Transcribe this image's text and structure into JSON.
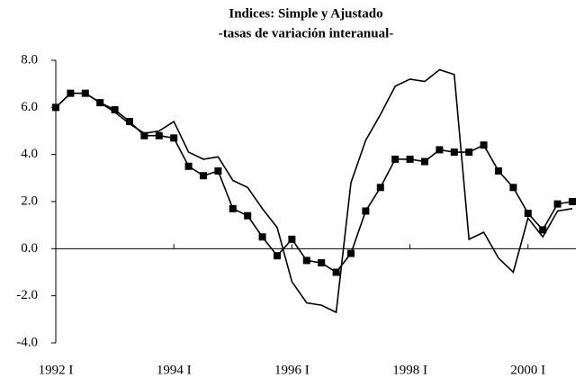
{
  "chart_data": {
    "type": "line",
    "title": "Indices:  Simple y Ajustado",
    "subtitle": "-tasas de variación interanual-",
    "categories": [
      "1992 I",
      null,
      null,
      null,
      null,
      null,
      null,
      null,
      "1994 I",
      null,
      null,
      null,
      null,
      null,
      null,
      null,
      "1996 I",
      null,
      null,
      null,
      null,
      null,
      null,
      null,
      "1998 I",
      null,
      null,
      null,
      null,
      null,
      null,
      null,
      "2000 I",
      null,
      null,
      null
    ],
    "series": [
      {
        "color": "#000000",
        "marker": "square",
        "values": [
          6.0,
          6.6,
          6.6,
          6.2,
          5.9,
          5.4,
          4.8,
          4.8,
          4.7,
          3.5,
          3.1,
          3.3,
          1.7,
          1.4,
          0.5,
          -0.3,
          0.4,
          -0.5,
          -0.6,
          -1.0,
          -0.2,
          1.6,
          2.6,
          3.8,
          3.8,
          3.7,
          4.2,
          4.1,
          4.1,
          4.4,
          3.3,
          2.6,
          1.5,
          0.8,
          1.9,
          2.0
        ]
      },
      {
        "color": "#000000",
        "marker": "none",
        "values": [
          6.0,
          6.6,
          6.6,
          6.2,
          5.8,
          5.3,
          4.9,
          5.0,
          5.4,
          4.1,
          3.8,
          3.9,
          2.9,
          2.6,
          1.7,
          0.9,
          -1.4,
          -2.3,
          -2.4,
          -2.7,
          2.8,
          4.6,
          5.7,
          6.9,
          7.2,
          7.1,
          7.6,
          7.4,
          0.4,
          0.7,
          -0.4,
          -1.0,
          1.3,
          0.5,
          1.6,
          1.7
        ]
      }
    ],
    "ylim": [
      -4,
      8
    ],
    "yticks": [
      {
        "value": -4,
        "label": "-4.0"
      },
      {
        "value": -2,
        "label": "-2.0"
      },
      {
        "value": 0,
        "label": "0.0"
      },
      {
        "value": 2,
        "label": "2.0"
      },
      {
        "value": 4,
        "label": "4.0"
      },
      {
        "value": 6,
        "label": "6.0"
      },
      {
        "value": 8,
        "label": "8.0"
      }
    ],
    "grid": false
  }
}
